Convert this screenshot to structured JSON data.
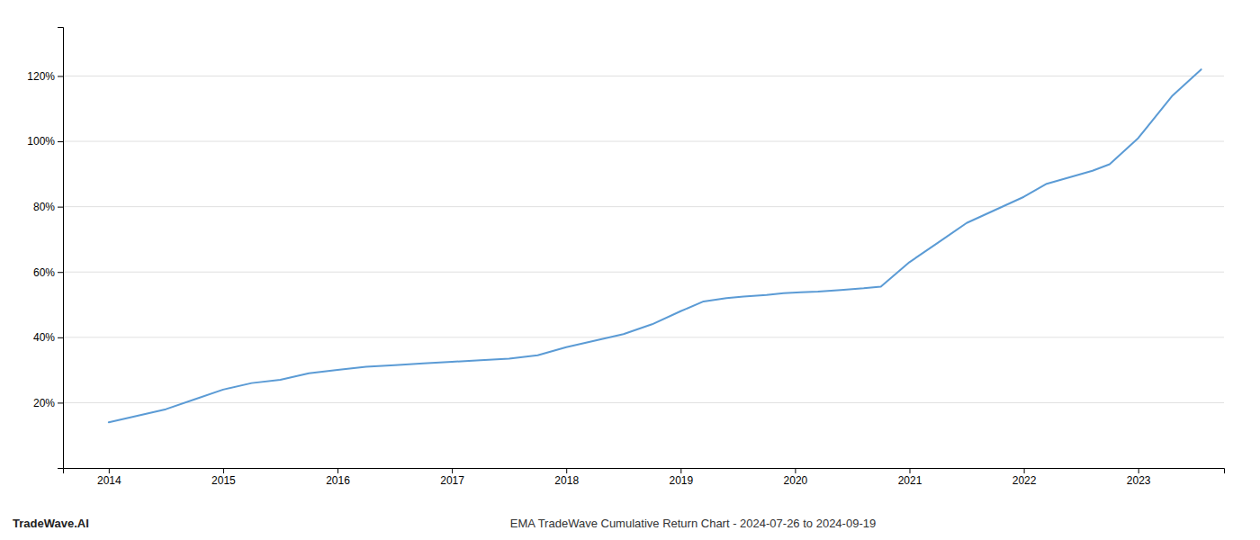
{
  "chart_data": {
    "type": "line",
    "title": "EMA TradeWave Cumulative Return Chart - 2024-07-26 to 2024-09-19",
    "annotations": [
      "TradeWave.AI"
    ],
    "x": [
      2014,
      2014.25,
      2014.5,
      2014.75,
      2015,
      2015.25,
      2015.5,
      2015.75,
      2016,
      2016.25,
      2016.5,
      2016.75,
      2017,
      2017.25,
      2017.5,
      2017.75,
      2018,
      2018.25,
      2018.5,
      2018.75,
      2019,
      2019.2,
      2019.4,
      2019.55,
      2019.75,
      2019.9,
      2020.05,
      2020.2,
      2020.4,
      2020.6,
      2020.75,
      2021,
      2021.25,
      2021.5,
      2021.75,
      2022,
      2022.2,
      2022.4,
      2022.6,
      2022.75,
      2023,
      2023.3,
      2023.55
    ],
    "values": [
      14,
      16,
      18,
      21,
      24,
      26,
      27,
      29,
      30,
      31,
      31.5,
      32,
      32.5,
      33,
      33.5,
      34.5,
      37,
      39,
      41,
      44,
      48,
      51,
      52,
      52.5,
      53,
      53.5,
      53.8,
      54,
      54.5,
      55,
      55.5,
      63,
      69,
      75,
      79,
      83,
      87,
      89,
      91,
      93,
      101,
      114,
      122
    ],
    "color": "#5b9bd5",
    "xlim": [
      2013.6,
      2023.75
    ],
    "ylim": [
      0,
      135
    ],
    "xticks": [
      2014,
      2015,
      2016,
      2017,
      2018,
      2019,
      2020,
      2021,
      2022,
      2023
    ],
    "yticks": [
      {
        "value": 20,
        "label": "20%"
      },
      {
        "value": 40,
        "label": "40%"
      },
      {
        "value": 60,
        "label": "60%"
      },
      {
        "value": 80,
        "label": "80%"
      },
      {
        "value": 100,
        "label": "100%"
      },
      {
        "value": 120,
        "label": "120%"
      }
    ],
    "grid": true
  }
}
